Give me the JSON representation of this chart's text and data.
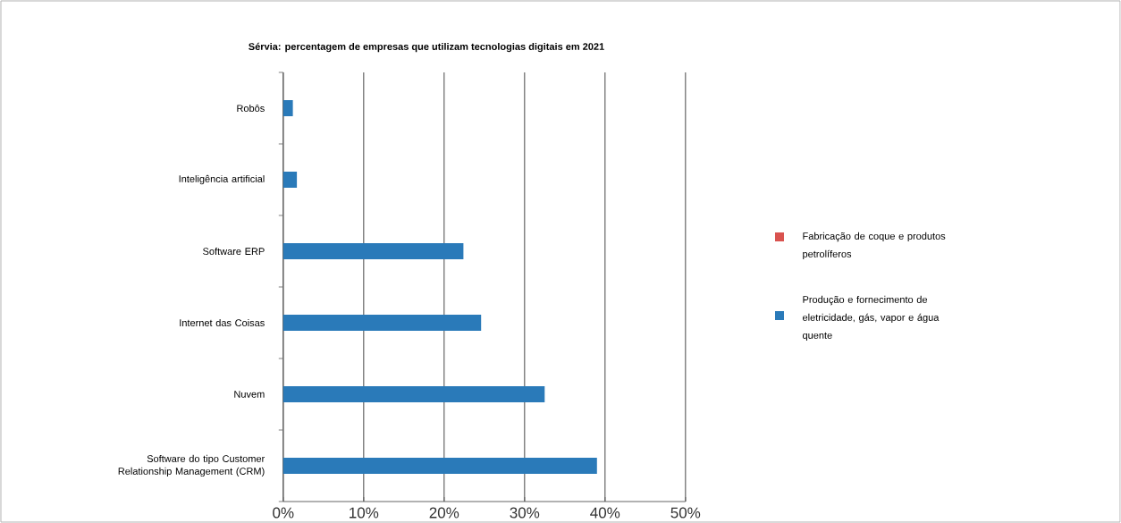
{
  "chart_data": {
    "type": "bar",
    "orientation": "horizontal",
    "title": "Sérvia: percentagem de empresas que utilizam tecnologias digitais em 2021",
    "categories": [
      "Robôs",
      "Inteligência artificial",
      "Software ERP",
      "Internet das Coisas",
      "Nuvem",
      "Software do tipo Customer Relationship Management (CRM)"
    ],
    "series": [
      {
        "name": "Fabricação de coque e produtos petrolíferos",
        "color": "#d9534f",
        "values": [
          null,
          null,
          null,
          null,
          null,
          null
        ]
      },
      {
        "name": "Produção e fornecimento de eletricidade, gás, vapor e água quente",
        "color": "#2a7ab9",
        "values": [
          1.2,
          1.7,
          22.4,
          24.6,
          32.5,
          39.0
        ]
      }
    ],
    "xlim": [
      0,
      50
    ],
    "xticks": [
      {
        "value": 0,
        "label": "0%"
      },
      {
        "value": 10,
        "label": "10%"
      },
      {
        "value": 20,
        "label": "20%"
      },
      {
        "value": 30,
        "label": "30%"
      },
      {
        "value": 40,
        "label": "40%"
      },
      {
        "value": 50,
        "label": "50%"
      }
    ],
    "grid": "x",
    "legend": "right"
  }
}
